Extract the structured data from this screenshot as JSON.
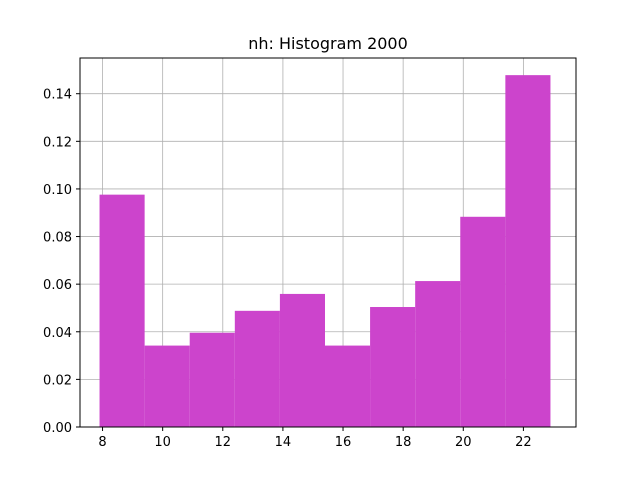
{
  "chart_data": {
    "type": "bar",
    "title": "nh: Histogram 2000",
    "xlabel": "",
    "ylabel": "",
    "xlim": [
      7.25,
      23.75
    ],
    "ylim": [
      0,
      0.155
    ],
    "grid": true,
    "bar_color": "#cc44cc",
    "bins": [
      {
        "x0": 7.9,
        "x1": 9.4,
        "value": 0.0976
      },
      {
        "x0": 9.4,
        "x1": 10.9,
        "value": 0.0342
      },
      {
        "x0": 10.9,
        "x1": 12.4,
        "value": 0.0396
      },
      {
        "x0": 12.4,
        "x1": 13.9,
        "value": 0.0488
      },
      {
        "x0": 13.9,
        "x1": 15.4,
        "value": 0.0559
      },
      {
        "x0": 15.4,
        "x1": 16.9,
        "value": 0.0342
      },
      {
        "x0": 16.9,
        "x1": 18.4,
        "value": 0.0504
      },
      {
        "x0": 18.4,
        "x1": 19.9,
        "value": 0.0613
      },
      {
        "x0": 19.9,
        "x1": 21.4,
        "value": 0.0883
      },
      {
        "x0": 21.4,
        "x1": 22.9,
        "value": 0.1478
      }
    ],
    "x_ticks": [
      8,
      10,
      12,
      14,
      16,
      18,
      20,
      22
    ],
    "y_ticks": [
      0.0,
      0.02,
      0.04,
      0.06,
      0.08,
      0.1,
      0.12,
      0.14
    ],
    "x_tick_labels": [
      "8",
      "10",
      "12",
      "14",
      "16",
      "18",
      "20",
      "22"
    ],
    "y_tick_labels": [
      "0.00",
      "0.02",
      "0.04",
      "0.06",
      "0.08",
      "0.10",
      "0.12",
      "0.14"
    ]
  }
}
